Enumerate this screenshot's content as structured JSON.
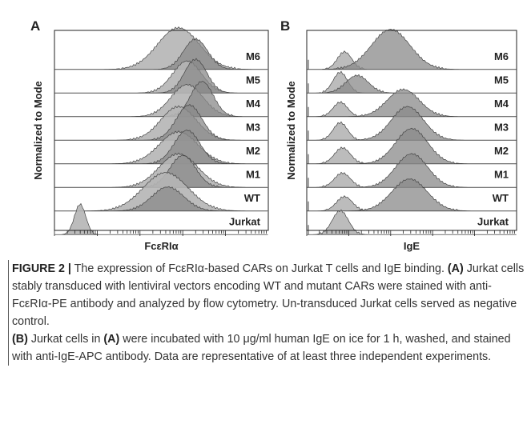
{
  "figure": {
    "panels": [
      {
        "label": "A",
        "y_axis_label": "Normalized to Mode",
        "x_axis_label": "FcεRIα",
        "rows": [
          "M6",
          "M5",
          "M4",
          "M3",
          "M2",
          "M1",
          "WT",
          "Jurkat"
        ]
      },
      {
        "label": "B",
        "y_axis_label": "Normalized to Mode",
        "x_axis_label": "IgE",
        "rows": [
          "M6",
          "M5",
          "M4",
          "M3",
          "M2",
          "M1",
          "WT",
          "Jurkat"
        ]
      }
    ],
    "caption": {
      "figure_label": "FIGURE 2 |",
      "title": " The expression of FcεRIα-based CARs on Jurkat T cells and IgE binding. ",
      "part_a_label": "(A)",
      "part_a_text": " Jurkat cells stably transduced with lentiviral vectors encoding WT and mutant CARs were stained with anti-FcεRIα-PE antibody and analyzed by flow cytometry. Un-transduced Jurkat cells served as negative control.",
      "part_b_label": "(B)",
      "part_b_text_1": " Jurkat cells in ",
      "part_b_ref": "(A)",
      "part_b_text_2": " were incubated with 10 μg/ml human IgE on ice for 1 h, washed, and stained with anti-IgE-APC antibody. Data are representative of at least three independent experiments."
    }
  }
}
